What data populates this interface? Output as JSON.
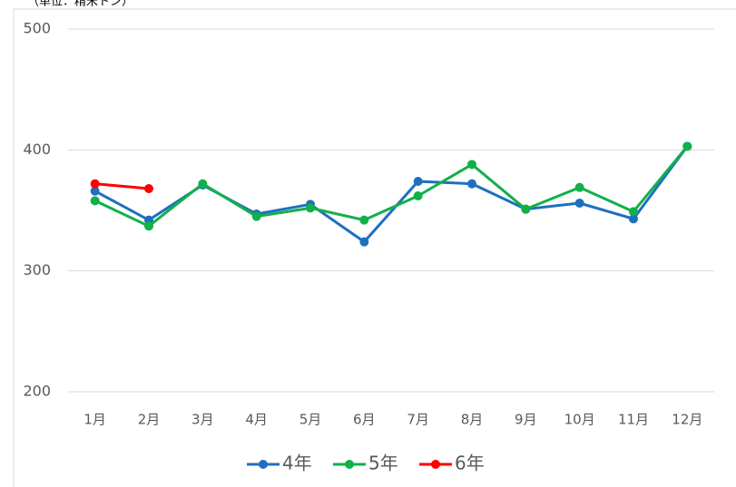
{
  "chart_data": {
    "type": "line",
    "unit_label": "（単位：精米トン）",
    "categories": [
      "1月",
      "2月",
      "3月",
      "4月",
      "5月",
      "6月",
      "7月",
      "8月",
      "9月",
      "10月",
      "11月",
      "12月"
    ],
    "series": [
      {
        "name": "4年",
        "color": "#1f6fc0",
        "values": [
          366,
          342,
          371,
          347,
          355,
          324,
          374,
          372,
          351,
          356,
          343,
          403
        ]
      },
      {
        "name": "5年",
        "color": "#12b04a",
        "values": [
          358,
          337,
          372,
          345,
          352,
          342,
          362,
          388,
          351,
          369,
          349,
          403
        ]
      },
      {
        "name": "6年",
        "color": "#ff0000",
        "values": [
          372,
          368,
          null,
          null,
          null,
          null,
          null,
          null,
          null,
          null,
          null,
          null
        ]
      }
    ],
    "ylim": [
      200,
      500
    ],
    "yticks": [
      200,
      300,
      400,
      500
    ],
    "grid": true,
    "legend": "bottom"
  }
}
